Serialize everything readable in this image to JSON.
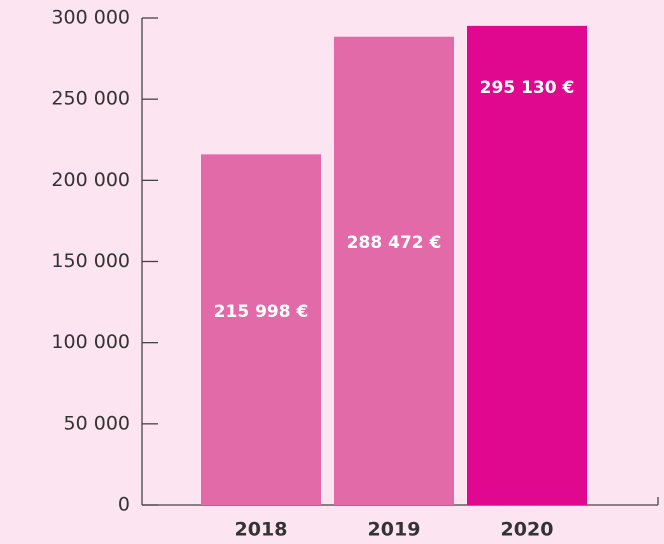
{
  "chart_data": {
    "type": "bar",
    "categories": [
      "2018",
      "2019",
      "2020"
    ],
    "values": [
      215998,
      288472,
      295130
    ],
    "value_labels": [
      "215 998 €",
      "288 472 €",
      "295 130 €"
    ],
    "colors": [
      "#e36aa9",
      "#e36aa9",
      "#e0088f"
    ],
    "ylim": [
      0,
      300000
    ],
    "yticks": [
      0,
      {
        "value": 50000,
        "label": "50 000"
      },
      {
        "value": 100000,
        "label": "100 000"
      },
      {
        "value": 150000,
        "label": "150 000"
      },
      {
        "value": 200000,
        "label": "200 000"
      },
      {
        "value": 250000,
        "label": "250 000"
      },
      {
        "value": 300000,
        "label": "300 000"
      }
    ]
  }
}
